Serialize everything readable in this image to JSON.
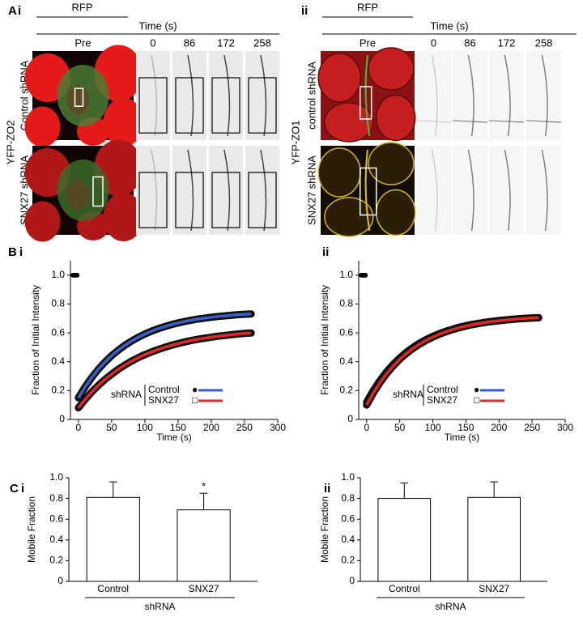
{
  "figure_a": [
    {
      "panel": "A",
      "sub": "i",
      "channel": "RFP",
      "time_label": "Time (s)",
      "pre": "Pre",
      "times": [
        0,
        86,
        172,
        258
      ],
      "construct": "YFP-ZO2",
      "rows": [
        "Control shRNA",
        "SNX27 shRNA"
      ]
    },
    {
      "sub": "ii",
      "channel": "RFP",
      "time_label": "Time (s)",
      "pre": "Pre",
      "times": [
        0,
        86,
        172,
        258
      ],
      "construct": "YFP-ZO1",
      "rows": [
        "control shRNA",
        "SNX27 shRNA"
      ]
    }
  ],
  "chart_data": [
    {
      "type": "line",
      "panel": "B",
      "subpanel": "i",
      "x_label": "Time (s)",
      "y_label": "Fraction of Initial Intensity",
      "xlim": [
        -12,
        300
      ],
      "xticks": [
        0,
        50,
        100,
        150,
        200,
        250,
        300
      ],
      "ylim": [
        0,
        1.1
      ],
      "yticks": [
        0,
        0.2,
        0.4,
        0.6,
        0.8,
        {
          "value": 1,
          "label": "1.0"
        }
      ],
      "legend_title": "shRNA",
      "series": [
        {
          "color": "#000000",
          "x": [
            -8,
            -6,
            -4,
            -2
          ],
          "values": [
            1,
            1,
            1,
            1
          ]
        },
        {
          "name": "Control",
          "marker": "●",
          "color": "#3a5fc8",
          "x": [
            0,
            10,
            20,
            30,
            40,
            50,
            60,
            70,
            80,
            90,
            100,
            110,
            120,
            130,
            140,
            150,
            160,
            170,
            180,
            190,
            200,
            210,
            220,
            230,
            240,
            250,
            260
          ],
          "values": [
            0.15,
            0.225,
            0.29,
            0.348,
            0.398,
            0.442,
            0.48,
            0.514,
            0.543,
            0.569,
            0.592,
            0.612,
            0.629,
            0.644,
            0.657,
            0.669,
            0.679,
            0.688,
            0.696,
            0.702,
            0.708,
            0.714,
            0.718,
            0.722,
            0.726,
            0.729,
            0.731
          ]
        },
        {
          "name": "SNX27",
          "marker": "□",
          "color": "#e02828",
          "x": [
            0,
            10,
            20,
            30,
            40,
            50,
            60,
            70,
            80,
            90,
            100,
            110,
            120,
            130,
            140,
            150,
            160,
            170,
            180,
            190,
            200,
            210,
            220,
            230,
            240,
            250,
            260
          ],
          "values": [
            0.08,
            0.138,
            0.19,
            0.236,
            0.277,
            0.314,
            0.348,
            0.377,
            0.404,
            0.428,
            0.449,
            0.468,
            0.485,
            0.5,
            0.514,
            0.526,
            0.537,
            0.547,
            0.556,
            0.563,
            0.57,
            0.577,
            0.582,
            0.587,
            0.592,
            0.596,
            0.599
          ]
        }
      ]
    },
    {
      "type": "line",
      "subpanel": "ii",
      "x_label": "Time (s)",
      "y_label": "Fraction of Initial Intensity",
      "xlim": [
        -12,
        300
      ],
      "xticks": [
        0,
        50,
        100,
        150,
        200,
        250,
        300
      ],
      "ylim": [
        0,
        1.1
      ],
      "yticks": [
        0,
        0.2,
        0.4,
        0.6,
        0.8,
        {
          "value": 1,
          "label": "1.0"
        }
      ],
      "legend_title": "shRNA",
      "series": [
        {
          "color": "#000000",
          "x": [
            -8,
            -6,
            -4,
            -2
          ],
          "values": [
            1,
            1,
            1,
            1
          ]
        },
        {
          "name": "Control",
          "marker": "●",
          "color": "#3a5fc8",
          "x": [
            0,
            10,
            20,
            30,
            40,
            50,
            60,
            70,
            80,
            90,
            100,
            110,
            120,
            130,
            140,
            150,
            160,
            170,
            180,
            190,
            200,
            210,
            220,
            230,
            240,
            250,
            260
          ],
          "values": [
            0.12,
            0.2,
            0.269,
            0.329,
            0.381,
            0.426,
            0.465,
            0.499,
            0.529,
            0.554,
            0.576,
            0.595,
            0.612,
            0.626,
            0.639,
            0.65,
            0.659,
            0.667,
            0.674,
            0.68,
            0.686,
            0.69,
            0.694,
            0.698,
            0.701,
            0.703,
            0.705
          ]
        },
        {
          "name": "SNX27",
          "marker": "□",
          "color": "#e02828",
          "x": [
            0,
            10,
            20,
            30,
            40,
            50,
            60,
            70,
            80,
            90,
            100,
            110,
            120,
            130,
            140,
            150,
            160,
            170,
            180,
            190,
            200,
            210,
            220,
            230,
            240,
            250,
            260
          ],
          "values": [
            0.1,
            0.183,
            0.254,
            0.316,
            0.37,
            0.417,
            0.457,
            0.492,
            0.522,
            0.549,
            0.571,
            0.591,
            0.608,
            0.623,
            0.636,
            0.647,
            0.657,
            0.665,
            0.673,
            0.679,
            0.684,
            0.689,
            0.693,
            0.697,
            0.7,
            0.703,
            0.705
          ]
        }
      ]
    },
    {
      "type": "bar",
      "panel": "C",
      "subpanel": "i",
      "y_label": "Mobile Fraction",
      "group_label": "shRNA",
      "categories": [
        "Control",
        "SNX27"
      ],
      "values": [
        0.81,
        0.69
      ],
      "errors": [
        0.15,
        0.16
      ],
      "significance": [
        null,
        "*"
      ],
      "color": "#ffffff",
      "ylim": [
        0,
        1
      ],
      "yticks": [
        0,
        0.2,
        0.4,
        0.6,
        0.8,
        {
          "value": 1,
          "label": "1.0"
        }
      ]
    },
    {
      "type": "bar",
      "subpanel": "ii",
      "y_label": "Mobile Fraction",
      "group_label": "shRNA",
      "categories": [
        "Control",
        "SNX27"
      ],
      "values": [
        0.8,
        0.81
      ],
      "errors": [
        0.15,
        0.15
      ],
      "significance": [
        null,
        null
      ],
      "color": "#ffffff",
      "ylim": [
        0,
        1
      ],
      "yticks": [
        0,
        0.2,
        0.4,
        0.6,
        0.8,
        {
          "value": 1,
          "label": "1.0"
        }
      ]
    }
  ]
}
